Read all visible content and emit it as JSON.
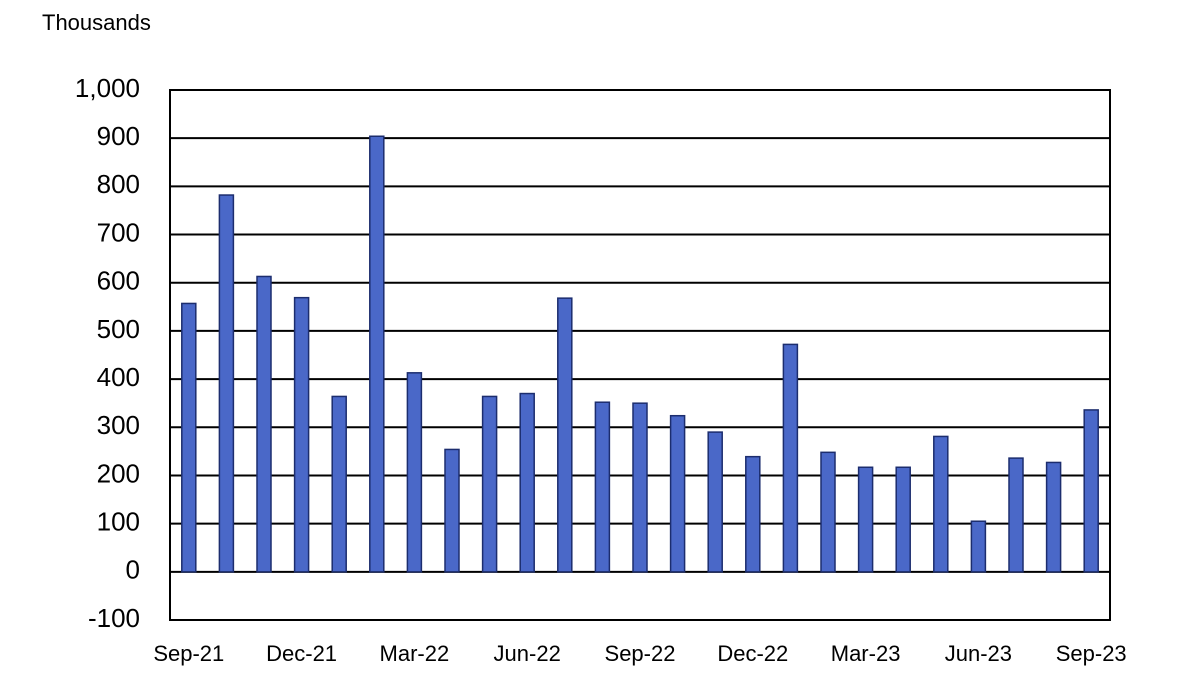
{
  "chart_data": {
    "type": "bar",
    "y_axis_label": "Thousands",
    "categories": [
      "Sep-21",
      null,
      null,
      "Dec-21",
      null,
      null,
      "Mar-22",
      null,
      null,
      "Jun-22",
      null,
      null,
      "Sep-22",
      null,
      null,
      "Dec-22",
      null,
      null,
      "Mar-23",
      null,
      null,
      "Jun-23",
      null,
      null,
      "Sep-23"
    ],
    "values": [
      557,
      782,
      613,
      569,
      364,
      904,
      413,
      254,
      364,
      370,
      568,
      352,
      350,
      324,
      290,
      239,
      472,
      248,
      217,
      217,
      281,
      105,
      236,
      227,
      336
    ],
    "color": "#4a68c8",
    "ylim": [
      -100,
      1000
    ],
    "yticks": [
      -100,
      0,
      100,
      200,
      300,
      400,
      500,
      600,
      700,
      800,
      900,
      {
        "value": 1000,
        "label": "1,000"
      }
    ],
    "grid": true
  }
}
